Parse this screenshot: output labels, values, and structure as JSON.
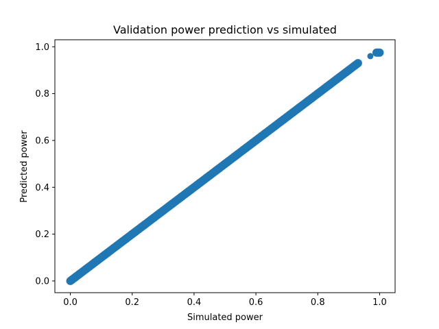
{
  "chart_data": {
    "type": "scatter",
    "title": "Validation power prediction vs simulated",
    "xlabel": "Simulated power",
    "ylabel": "Predicted power",
    "xlim": [
      -0.05,
      1.05
    ],
    "ylim": [
      -0.05,
      1.03
    ],
    "xticks": [
      "0.0",
      "0.2",
      "0.4",
      "0.6",
      "0.8",
      "1.0"
    ],
    "yticks": [
      "0.0",
      "0.2",
      "0.4",
      "0.6",
      "0.8",
      "1.0"
    ],
    "grid": false,
    "legend": "none",
    "marker_color": "#1f77b4",
    "series": [
      {
        "x": [
          0.0,
          0.005,
          0.01,
          0.015,
          0.02,
          0.03,
          0.04,
          0.05,
          0.06,
          0.07,
          0.08,
          0.09,
          0.1,
          0.11,
          0.12,
          0.13,
          0.14,
          0.15,
          0.16,
          0.17,
          0.18,
          0.19,
          0.2,
          0.21,
          0.22,
          0.23,
          0.24,
          0.25,
          0.26,
          0.27,
          0.28,
          0.29,
          0.3,
          0.31,
          0.32,
          0.33,
          0.34,
          0.35,
          0.36,
          0.37,
          0.38,
          0.39,
          0.4,
          0.41,
          0.42,
          0.43,
          0.44,
          0.45,
          0.46,
          0.47,
          0.48,
          0.49,
          0.5,
          0.51,
          0.52,
          0.53,
          0.54,
          0.55,
          0.56,
          0.57,
          0.58,
          0.59,
          0.6,
          0.61,
          0.62,
          0.63,
          0.64,
          0.65,
          0.66,
          0.67,
          0.68,
          0.69,
          0.7,
          0.71,
          0.72,
          0.73,
          0.74,
          0.75,
          0.76,
          0.77,
          0.78,
          0.79,
          0.8,
          0.81,
          0.82,
          0.83,
          0.84,
          0.85,
          0.86,
          0.87,
          0.88,
          0.89,
          0.9,
          0.91,
          0.92,
          0.93,
          0.97,
          0.99,
          1.0
        ],
        "y": [
          0.0,
          0.005,
          0.01,
          0.015,
          0.02,
          0.03,
          0.04,
          0.05,
          0.06,
          0.07,
          0.08,
          0.09,
          0.1,
          0.11,
          0.12,
          0.13,
          0.14,
          0.15,
          0.16,
          0.17,
          0.18,
          0.19,
          0.2,
          0.21,
          0.22,
          0.23,
          0.24,
          0.25,
          0.26,
          0.27,
          0.28,
          0.29,
          0.3,
          0.31,
          0.32,
          0.33,
          0.34,
          0.35,
          0.36,
          0.37,
          0.38,
          0.39,
          0.4,
          0.41,
          0.42,
          0.43,
          0.44,
          0.45,
          0.46,
          0.47,
          0.48,
          0.49,
          0.5,
          0.51,
          0.52,
          0.53,
          0.54,
          0.55,
          0.56,
          0.57,
          0.58,
          0.59,
          0.6,
          0.61,
          0.62,
          0.63,
          0.64,
          0.65,
          0.66,
          0.67,
          0.68,
          0.69,
          0.7,
          0.71,
          0.72,
          0.73,
          0.74,
          0.75,
          0.76,
          0.77,
          0.78,
          0.79,
          0.8,
          0.81,
          0.82,
          0.83,
          0.84,
          0.85,
          0.86,
          0.87,
          0.88,
          0.89,
          0.9,
          0.91,
          0.92,
          0.93,
          0.96,
          0.975,
          0.975
        ]
      }
    ]
  }
}
